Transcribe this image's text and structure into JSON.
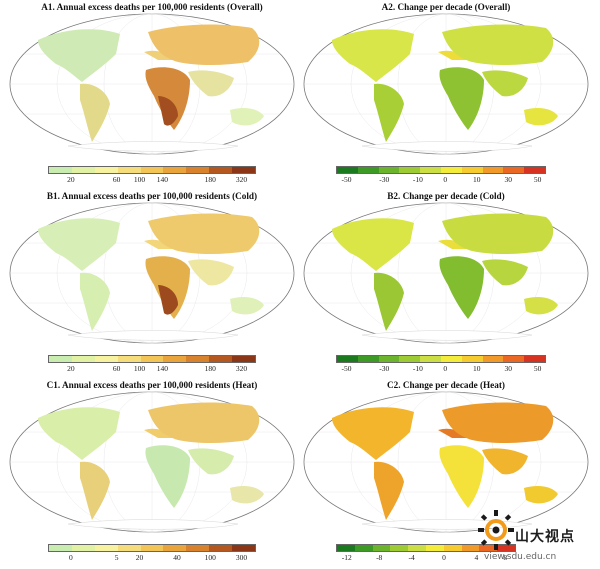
{
  "panels": [
    {
      "id": "a1",
      "title": "A1. Annual excess deaths per 100,000 residents (Overall)",
      "ticks": [
        "20",
        "60",
        "100",
        "140",
        "180",
        "320"
      ],
      "colors": [
        "#c9ecb0",
        "#e1f2a5",
        "#f7f2a0",
        "#f6dd7c",
        "#f3c456",
        "#eaa43c",
        "#d9822d",
        "#b55820",
        "#8b3616"
      ]
    },
    {
      "id": "a2",
      "title": "A2. Change per decade (Overall)",
      "ticks": [
        "-50",
        "-30",
        "-10",
        "0",
        "10",
        "30",
        "50"
      ],
      "colors": [
        "#1b7a1e",
        "#3d9a24",
        "#6bb42c",
        "#9ccb33",
        "#cbdf45",
        "#f4ec3a",
        "#f5cb2f",
        "#f19a2a",
        "#ea6724",
        "#d73322"
      ]
    },
    {
      "id": "b1",
      "title": "B1. Annual excess deaths per 100,000 residents (Cold)",
      "ticks": [
        "20",
        "60",
        "100",
        "140",
        "180",
        "320"
      ],
      "colors": [
        "#c9ecb0",
        "#e1f2a5",
        "#f7f2a0",
        "#f6dd7c",
        "#f3c456",
        "#eaa43c",
        "#d9822d",
        "#b55820",
        "#8b3616"
      ]
    },
    {
      "id": "b2",
      "title": "B2. Change per decade (Cold)",
      "ticks": [
        "-50",
        "-30",
        "-10",
        "0",
        "10",
        "30",
        "50"
      ],
      "colors": [
        "#1b7a1e",
        "#3d9a24",
        "#6bb42c",
        "#9ccb33",
        "#cbdf45",
        "#f4ec3a",
        "#f5cb2f",
        "#f19a2a",
        "#ea6724",
        "#d73322"
      ]
    },
    {
      "id": "c1",
      "title": "C1. Annual excess deaths per 100,000 residents (Heat)",
      "ticks": [
        "0",
        "5",
        "20",
        "40",
        "100",
        "300"
      ],
      "colors": [
        "#c9ecb0",
        "#e1f2a5",
        "#f7f2a0",
        "#f6dd7c",
        "#f3c456",
        "#eaa43c",
        "#d9822d",
        "#b55820",
        "#8b3616"
      ]
    },
    {
      "id": "c2",
      "title": "C2. Change per decade (Heat)",
      "ticks": [
        "-12",
        "-8",
        "-4",
        "0",
        "4",
        "8"
      ],
      "colors": [
        "#1b7a1e",
        "#3d9a24",
        "#6bb42c",
        "#9ccb33",
        "#cbdf45",
        "#f4ec3a",
        "#f5cb2f",
        "#f19a2a",
        "#ea6724",
        "#d73322"
      ]
    }
  ],
  "watermark": {
    "logo_text": "山大视点",
    "url_text": "view.sdu.edu.cn"
  }
}
